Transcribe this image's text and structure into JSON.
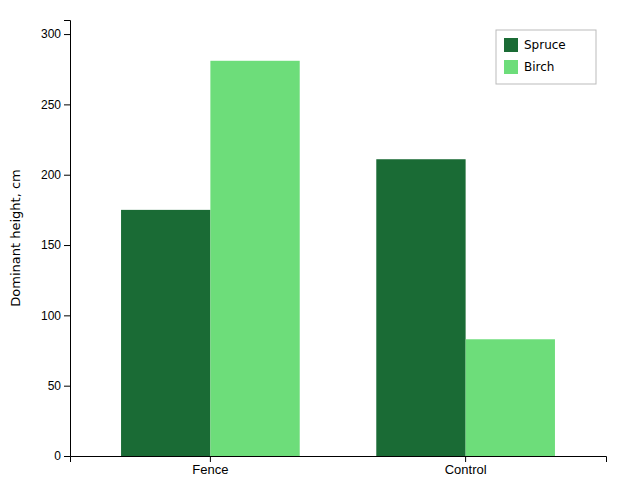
{
  "chart_data": {
    "type": "bar",
    "categories": [
      "Fence",
      "Control"
    ],
    "series": [
      {
        "name": "Spruce",
        "color": "#1a6b35",
        "values": [
          175,
          211
        ]
      },
      {
        "name": "Birch",
        "color": "#6ddd7a",
        "values": [
          281,
          83
        ]
      }
    ],
    "ylabel": "Dominant height, cm",
    "ylim": [
      0,
      310
    ],
    "yticks": [
      0,
      50,
      100,
      150,
      200,
      250,
      300
    ],
    "legend": "upper right",
    "grid": false
  }
}
